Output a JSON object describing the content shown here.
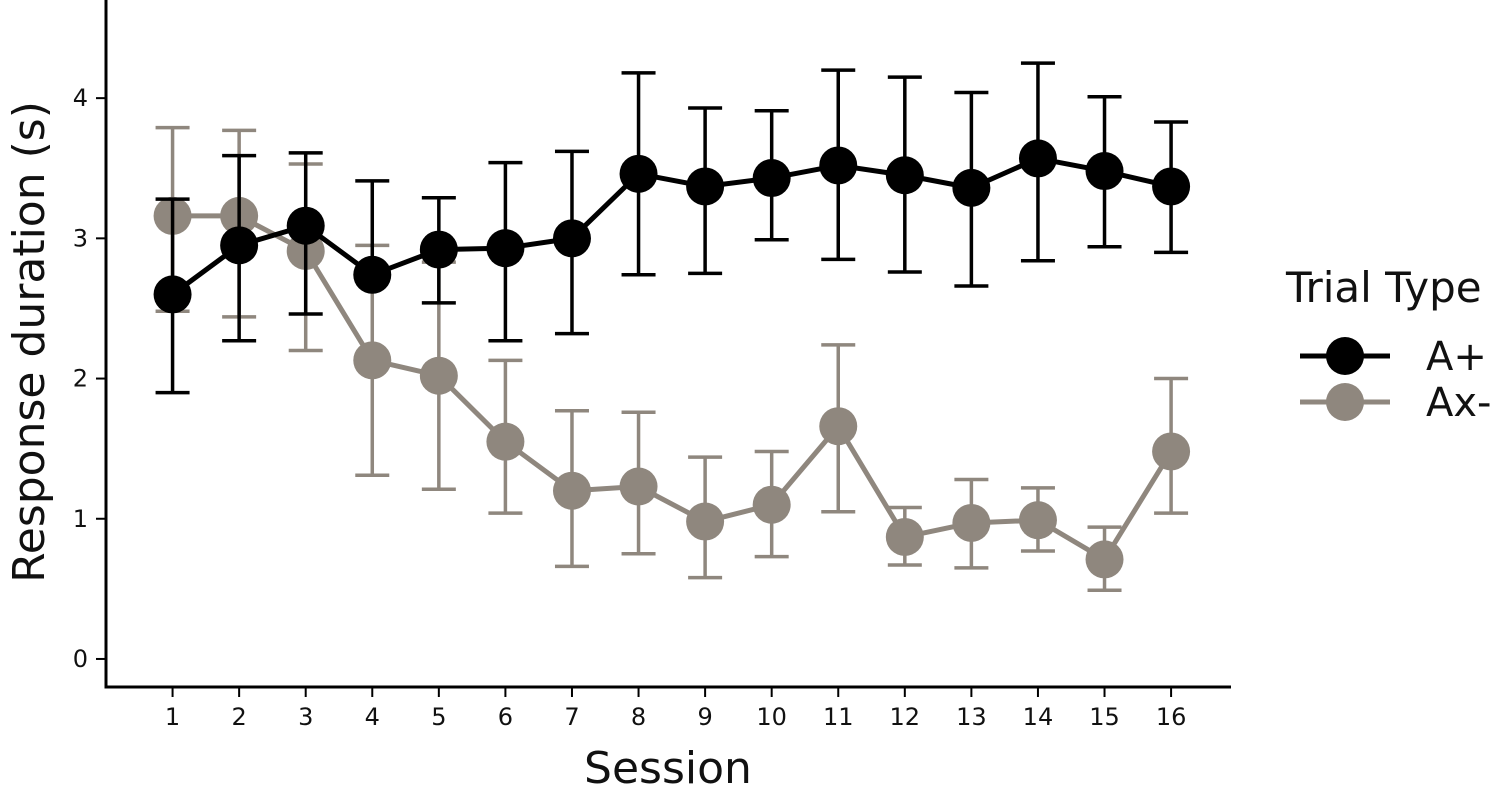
{
  "chart_data": {
    "type": "line",
    "title": "",
    "xlabel": "Session",
    "ylabel": "Response duration (s)",
    "x": [
      1,
      2,
      3,
      4,
      5,
      6,
      7,
      8,
      9,
      10,
      11,
      12,
      13,
      14,
      15,
      16
    ],
    "x_tick_labels": [
      "1",
      "2",
      "3",
      "4",
      "5",
      "6",
      "7",
      "8",
      "9",
      "10",
      "11",
      "12",
      "13",
      "14",
      "15",
      "16"
    ],
    "ylim": [
      -0.2,
      4.7
    ],
    "xlim": [
      0,
      16.9
    ],
    "y_ticks": [
      0,
      1,
      2,
      3,
      4
    ],
    "y_tick_labels": [
      "0",
      "1",
      "2",
      "3",
      "4"
    ],
    "grid": false,
    "legend": {
      "title": "Trial Type",
      "position": "right"
    },
    "series": [
      {
        "name": "A+",
        "color": "#000000",
        "values": [
          2.6,
          2.95,
          3.09,
          2.74,
          2.92,
          2.93,
          3.0,
          3.46,
          3.37,
          3.43,
          3.52,
          3.45,
          3.36,
          3.57,
          3.48,
          3.37
        ],
        "error_low": [
          1.9,
          2.27,
          2.46,
          2.74,
          2.54,
          2.27,
          2.32,
          2.74,
          2.75,
          2.99,
          2.85,
          2.76,
          2.66,
          2.84,
          2.94,
          2.9
        ],
        "error_high": [
          3.28,
          3.59,
          3.61,
          3.41,
          3.29,
          3.54,
          3.62,
          4.18,
          3.93,
          3.91,
          4.2,
          4.15,
          4.04,
          4.25,
          4.01,
          3.83
        ]
      },
      {
        "name": "Ax-",
        "color": "#8f877e",
        "values": [
          3.16,
          3.16,
          2.91,
          2.13,
          2.02,
          1.55,
          1.2,
          1.23,
          0.98,
          1.1,
          1.66,
          0.87,
          0.97,
          0.99,
          0.71,
          1.48
        ],
        "error_low": [
          2.48,
          2.44,
          2.2,
          1.31,
          1.21,
          1.04,
          0.66,
          0.75,
          0.58,
          0.73,
          1.05,
          0.67,
          0.65,
          0.77,
          0.49,
          1.04
        ],
        "error_high": [
          3.79,
          3.77,
          3.53,
          2.95,
          2.83,
          2.13,
          1.77,
          1.76,
          1.44,
          1.48,
          2.24,
          1.08,
          1.28,
          1.22,
          0.94,
          2.0
        ]
      }
    ]
  }
}
